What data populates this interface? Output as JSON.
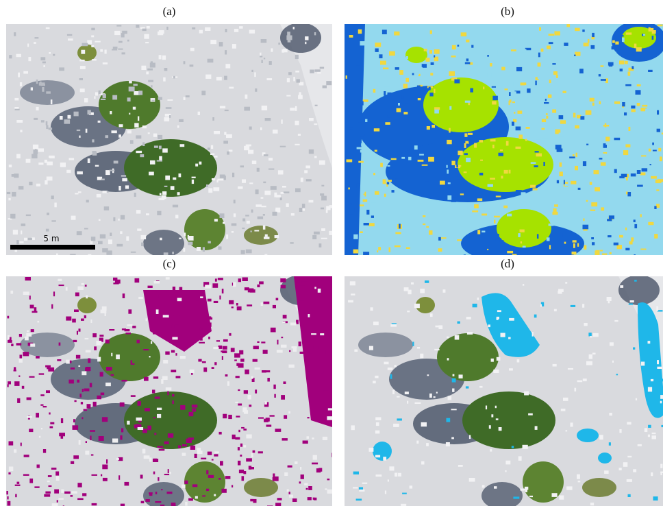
{
  "panels": [
    {
      "label": "(a)"
    },
    {
      "label": "(b)"
    },
    {
      "label": "(c)"
    },
    {
      "label": "(d)"
    }
  ],
  "scale_bar": {
    "label": "5 m"
  }
}
